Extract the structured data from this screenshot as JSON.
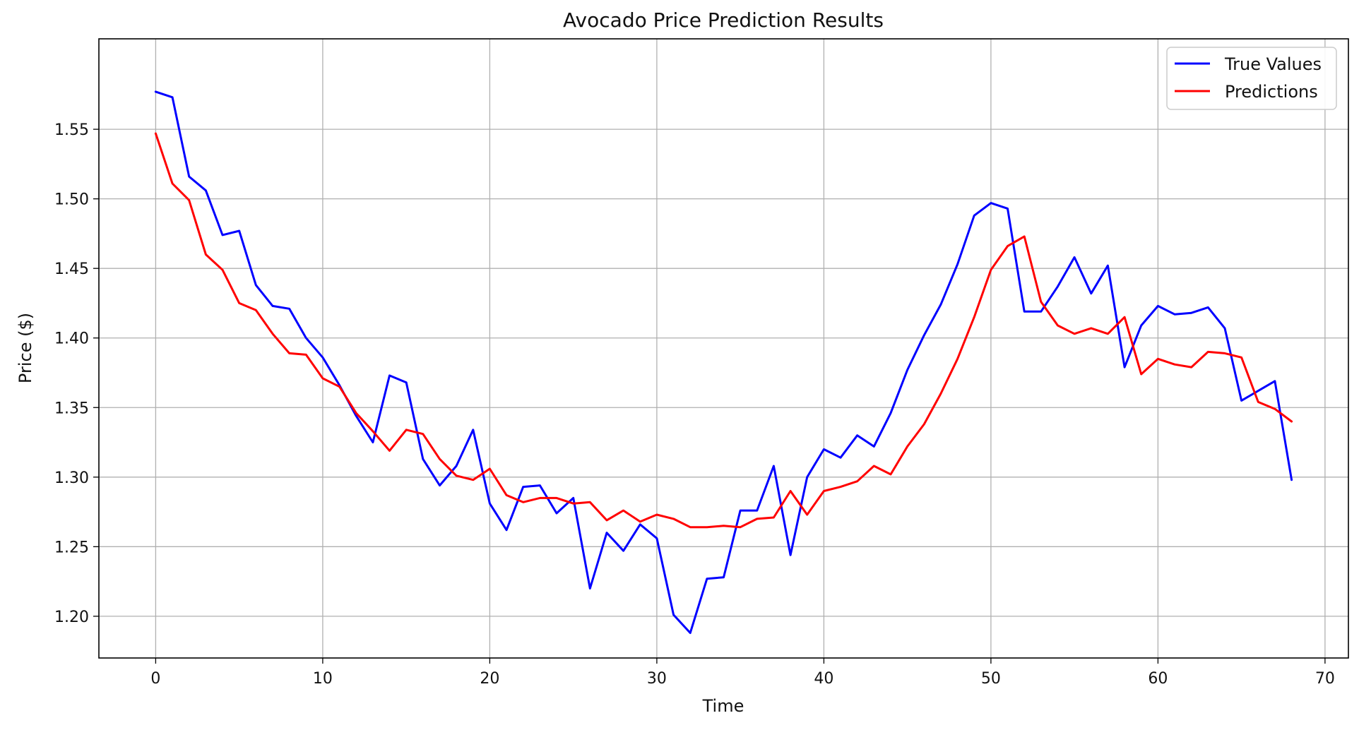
{
  "chart_data": {
    "type": "line",
    "title": "Avocado Price Prediction Results",
    "xlabel": "Time",
    "ylabel": "Price ($)",
    "xlim": [
      -3.4,
      71.4
    ],
    "ylim": [
      1.17,
      1.615
    ],
    "x_ticks": [
      0,
      10,
      20,
      30,
      40,
      50,
      60,
      70
    ],
    "y_ticks": [
      1.2,
      1.25,
      1.3,
      1.35,
      1.4,
      1.45,
      1.5,
      1.55
    ],
    "grid": true,
    "legend_position": "top-right",
    "series": [
      {
        "name": "True Values",
        "color": "#0000ff",
        "values": [
          1.577,
          1.573,
          1.516,
          1.506,
          1.474,
          1.477,
          1.438,
          1.423,
          1.421,
          1.4,
          1.386,
          1.366,
          1.344,
          1.325,
          1.373,
          1.368,
          1.313,
          1.294,
          1.308,
          1.334,
          1.281,
          1.262,
          1.293,
          1.294,
          1.274,
          1.285,
          1.22,
          1.26,
          1.247,
          1.266,
          1.256,
          1.201,
          1.188,
          1.227,
          1.228,
          1.276,
          1.276,
          1.308,
          1.244,
          1.3,
          1.32,
          1.314,
          1.33,
          1.322,
          1.346,
          1.377,
          1.402,
          1.424,
          1.453,
          1.488,
          1.497,
          1.493,
          1.419,
          1.419,
          1.437,
          1.458,
          1.432,
          1.452,
          1.379,
          1.409,
          1.423,
          1.417,
          1.418,
          1.422,
          1.407,
          1.355,
          1.362,
          1.369,
          1.298
        ]
      },
      {
        "name": "Predictions",
        "color": "#ff0000",
        "values": [
          1.547,
          1.511,
          1.499,
          1.46,
          1.449,
          1.425,
          1.42,
          1.403,
          1.389,
          1.388,
          1.371,
          1.365,
          1.346,
          1.333,
          1.319,
          1.334,
          1.331,
          1.313,
          1.301,
          1.298,
          1.306,
          1.287,
          1.282,
          1.285,
          1.285,
          1.281,
          1.282,
          1.269,
          1.276,
          1.268,
          1.273,
          1.27,
          1.264,
          1.264,
          1.265,
          1.264,
          1.27,
          1.271,
          1.29,
          1.273,
          1.29,
          1.293,
          1.297,
          1.308,
          1.302,
          1.322,
          1.338,
          1.36,
          1.385,
          1.415,
          1.449,
          1.466,
          1.473,
          1.426,
          1.409,
          1.403,
          1.407,
          1.403,
          1.415,
          1.374,
          1.385,
          1.381,
          1.379,
          1.39,
          1.389,
          1.386,
          1.354,
          1.349,
          1.34
        ]
      }
    ]
  }
}
